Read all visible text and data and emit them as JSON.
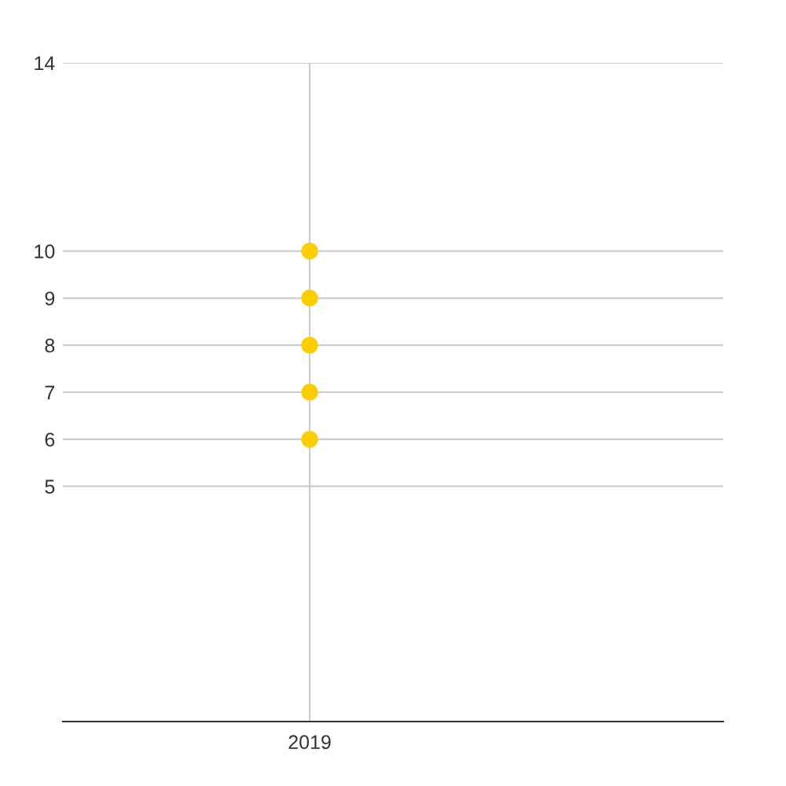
{
  "chart_data": {
    "type": "scatter",
    "categories": [
      "2019"
    ],
    "series": [
      {
        "color": "#fcce00",
        "values": [
          6
        ]
      },
      {
        "color": "#fcce00",
        "values": [
          7
        ]
      },
      {
        "color": "#fcce00",
        "values": [
          8
        ]
      },
      {
        "color": "#fcce00",
        "values": [
          9
        ]
      },
      {
        "color": "#fcce00",
        "values": [
          10
        ]
      }
    ],
    "ylim": [
      0,
      14
    ],
    "yticks": [
      5,
      6,
      7,
      8,
      9,
      10,
      14
    ],
    "grid": true,
    "marker": "circle"
  }
}
